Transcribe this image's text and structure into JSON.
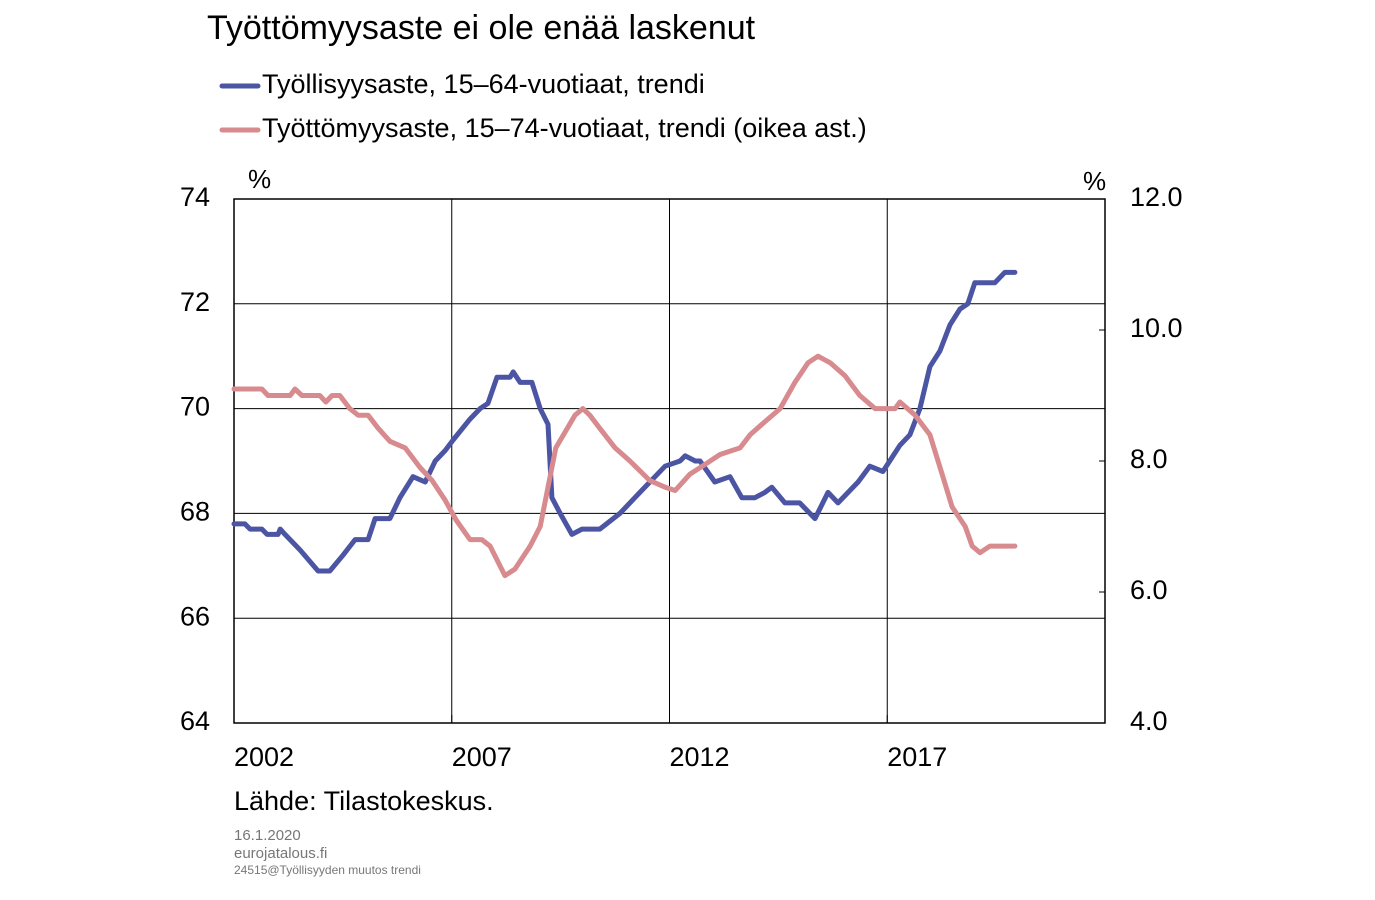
{
  "chart_data": {
    "type": "line",
    "title": "Työttömyysaste ei ole enää laskenut",
    "ylabel": "%",
    "y2label": "%",
    "source": "Lähde:  Tilastokeskus.",
    "footnotes": [
      "16.1.2020",
      "eurojatalous.fi",
      "24515@Työllisyyden  muutos trendi"
    ],
    "xlim": [
      2002,
      2022
    ],
    "xticks": [
      2002,
      2007,
      2012,
      2017
    ],
    "ylim": [
      64,
      74
    ],
    "yticks": [
      64,
      66,
      68,
      70,
      72,
      74
    ],
    "y2lim": [
      4,
      12
    ],
    "y2ticks": [
      {
        "value": 4,
        "label": "4.0"
      },
      {
        "value": 6,
        "label": "6.0"
      },
      {
        "value": 8,
        "label": "8.0"
      },
      {
        "value": 10,
        "label": "10.0"
      },
      {
        "value": 12,
        "label": "12.0"
      }
    ],
    "grid": true,
    "series": [
      {
        "name": "Työllisyysaste, 15–64-vuotiaat, trendi",
        "color": "#4b55a3",
        "x": [
          2002.0,
          2002.25,
          2002.37,
          2002.64,
          2002.76,
          2003.01,
          2003.06,
          2003.17,
          2003.52,
          2003.93,
          2004.2,
          2004.5,
          2004.78,
          2005.08,
          2005.24,
          2005.58,
          2005.81,
          2006.11,
          2006.39,
          2006.62,
          2006.85,
          2007.03,
          2007.42,
          2007.65,
          2007.83,
          2008.04,
          2008.34,
          2008.41,
          2008.57,
          2008.84,
          2009.03,
          2009.21,
          2009.3,
          2009.49,
          2009.76,
          2009.99,
          2010.4,
          2010.86,
          2011.32,
          2011.9,
          2012.24,
          2012.36,
          2012.59,
          2012.7,
          2013.04,
          2013.39,
          2013.66,
          2013.96,
          2014.19,
          2014.35,
          2014.65,
          2014.99,
          2015.34,
          2015.64,
          2015.87,
          2016.33,
          2016.6,
          2016.9,
          2017.29,
          2017.52,
          2017.75,
          2017.98,
          2018.21,
          2018.44,
          2018.67,
          2018.85,
          2019.01,
          2019.47,
          2019.7,
          2019.93
        ],
        "values": [
          67.8,
          67.8,
          67.7,
          67.7,
          67.6,
          67.6,
          67.7,
          67.6,
          67.3,
          66.9,
          66.9,
          67.2,
          67.5,
          67.5,
          67.9,
          67.9,
          68.3,
          68.7,
          68.6,
          69.0,
          69.2,
          69.4,
          69.8,
          70.0,
          70.1,
          70.6,
          70.6,
          70.7,
          70.5,
          70.5,
          70.0,
          69.7,
          68.3,
          68.0,
          67.6,
          67.7,
          67.7,
          68.0,
          68.4,
          68.9,
          69.0,
          69.1,
          69.0,
          69.0,
          68.6,
          68.7,
          68.3,
          68.3,
          68.4,
          68.5,
          68.2,
          68.2,
          67.9,
          68.4,
          68.2,
          68.6,
          68.9,
          68.8,
          69.3,
          69.5,
          70.0,
          70.8,
          71.1,
          71.6,
          71.9,
          72.0,
          72.4,
          72.4,
          72.6,
          72.6
        ]
      },
      {
        "name": "Työttömyysaste, 15–74-vuotiaat, trendi (oikea ast.)",
        "color": "#d88b8f",
        "axis": "y2",
        "x": [
          2002.0,
          2002.64,
          2002.78,
          2003.29,
          2003.4,
          2003.56,
          2003.97,
          2004.11,
          2004.25,
          2004.43,
          2004.66,
          2004.85,
          2005.08,
          2005.31,
          2005.58,
          2005.93,
          2006.27,
          2006.55,
          2006.85,
          2007.1,
          2007.42,
          2007.69,
          2007.88,
          2008.22,
          2008.45,
          2008.8,
          2009.03,
          2009.21,
          2009.39,
          2009.83,
          2010.01,
          2010.17,
          2010.4,
          2010.75,
          2011.09,
          2011.55,
          2011.9,
          2012.13,
          2012.47,
          2012.82,
          2013.16,
          2013.62,
          2013.85,
          2014.19,
          2014.54,
          2014.88,
          2015.18,
          2015.41,
          2015.69,
          2016.03,
          2016.37,
          2016.72,
          2017.18,
          2017.29,
          2017.64,
          2017.98,
          2018.26,
          2018.49,
          2018.79,
          2018.95,
          2019.13,
          2019.36,
          2019.93
        ],
        "values": [
          9.1,
          9.1,
          9.0,
          9.0,
          9.1,
          9.0,
          9.0,
          8.9,
          9.0,
          9.0,
          8.8,
          8.7,
          8.7,
          8.5,
          8.3,
          8.2,
          7.9,
          7.7,
          7.4,
          7.1,
          6.8,
          6.8,
          6.7,
          6.25,
          6.35,
          6.7,
          7.0,
          7.6,
          8.2,
          8.7,
          8.8,
          8.7,
          8.5,
          8.2,
          8.0,
          7.7,
          7.6,
          7.55,
          7.8,
          7.95,
          8.1,
          8.2,
          8.4,
          8.6,
          8.8,
          9.2,
          9.5,
          9.6,
          9.5,
          9.3,
          9.0,
          8.8,
          8.8,
          8.9,
          8.7,
          8.4,
          7.8,
          7.3,
          7.0,
          6.7,
          6.6,
          6.7,
          6.7
        ]
      }
    ]
  }
}
